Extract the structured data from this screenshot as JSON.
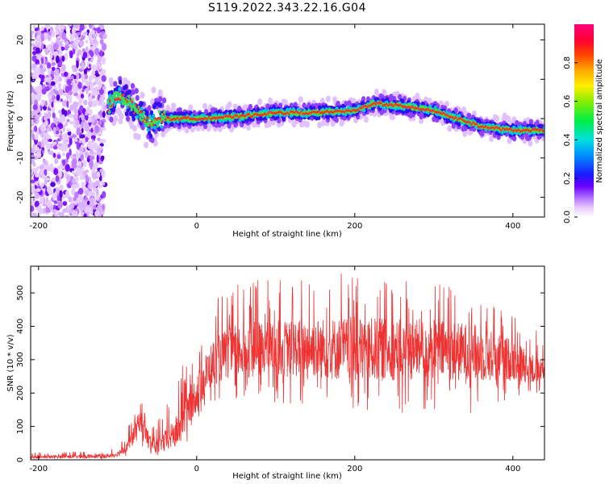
{
  "title": "S119.2022.343.22.16.G04",
  "chart_data": [
    {
      "type": "heatmap",
      "xlabel": "Height of straight line (km)",
      "ylabel": "Frequency (Hz)",
      "xlim": [
        -210,
        440
      ],
      "ylim": [
        -25,
        24
      ],
      "xticks": [
        -200,
        0,
        200,
        400
      ],
      "yticks": [
        -20,
        -10,
        0,
        10,
        20
      ],
      "colorbar": {
        "label": "Normalized spectral amplitude",
        "range": [
          0,
          1
        ],
        "ticks": [
          "0.0",
          "0.2",
          "0.4",
          "0.6",
          "0.8"
        ]
      },
      "noise_region": {
        "x": [
          -210,
          -116
        ],
        "y": [
          -25,
          24
        ]
      },
      "ridge": {
        "x": [
          -112,
          -100,
          -90,
          -80,
          -70,
          -60,
          -50,
          -40,
          0,
          50,
          100,
          150,
          200,
          225,
          240,
          270,
          300,
          330,
          360,
          400,
          440
        ],
        "frequency": [
          3,
          6,
          5,
          3,
          1,
          -1,
          0,
          0,
          0,
          0.5,
          1.5,
          1.5,
          2,
          4,
          3.5,
          3,
          2,
          0,
          -2,
          -3,
          -3
        ]
      },
      "grid": false,
      "legend": "colorbar-right"
    },
    {
      "type": "line",
      "xlabel": "Height of straight line (km)",
      "ylabel": "SNR (10 * v/v)",
      "xlim": [
        -210,
        440
      ],
      "ylim": [
        0,
        580
      ],
      "xticks": [
        -200,
        0,
        200,
        400
      ],
      "yticks": [
        0,
        100,
        200,
        300,
        400,
        500
      ],
      "color": "#ee3333",
      "series": [
        {
          "x": [
            -210,
            -150,
            -110,
            -100,
            -90,
            -80,
            -72,
            -60,
            -50,
            -40,
            -30,
            -20,
            -10,
            0,
            10,
            20,
            40,
            60,
            80,
            100,
            150,
            200,
            250,
            300,
            350,
            400,
            420,
            440
          ],
          "y": [
            8,
            10,
            12,
            18,
            35,
            70,
            120,
            55,
            40,
            55,
            75,
            100,
            160,
            200,
            250,
            290,
            320,
            330,
            330,
            335,
            335,
            330,
            330,
            330,
            320,
            300,
            280,
            255
          ],
          "max": [
            22,
            25,
            30,
            40,
            80,
            140,
            190,
            130,
            120,
            160,
            200,
            280,
            300,
            340,
            420,
            470,
            520,
            560,
            540,
            540,
            560,
            580,
            540,
            560,
            520,
            460,
            420,
            360
          ],
          "min": [
            2,
            2,
            3,
            5,
            10,
            20,
            40,
            15,
            10,
            15,
            20,
            30,
            60,
            100,
            150,
            170,
            180,
            180,
            170,
            170,
            160,
            140,
            130,
            150,
            130,
            180,
            200,
            200
          ]
        }
      ],
      "grid": false
    }
  ]
}
